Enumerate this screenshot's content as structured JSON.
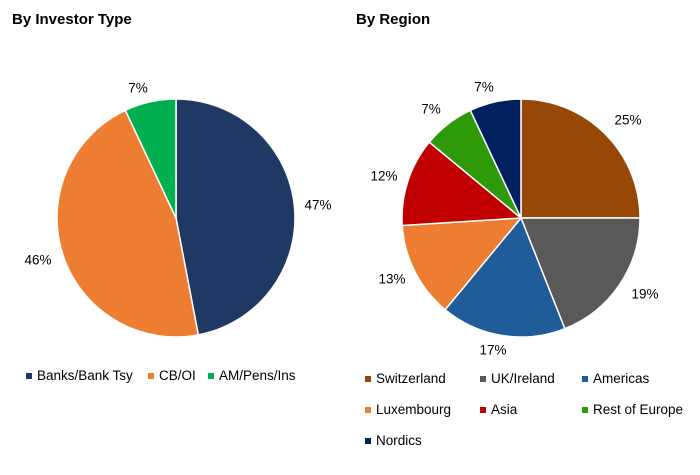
{
  "chart_data": [
    {
      "type": "pie",
      "title": "By Investor Type",
      "slices": [
        {
          "label": "Banks/Bank Tsy",
          "value": 47,
          "display": "47%",
          "color": "#1f3864"
        },
        {
          "label": "CB/OI",
          "value": 46,
          "display": "46%",
          "color": "#ed7d31"
        },
        {
          "label": "AM/Pens/Ins",
          "value": 7,
          "display": "7%",
          "color": "#00b050"
        }
      ]
    },
    {
      "type": "pie",
      "title": "By Region",
      "slices": [
        {
          "label": "Switzerland",
          "value": 25,
          "display": "25%",
          "color": "#974706"
        },
        {
          "label": "UK/Ireland",
          "value": 19,
          "display": "19%",
          "color": "#595959"
        },
        {
          "label": "Americas",
          "value": 17,
          "display": "17%",
          "color": "#1f5c99"
        },
        {
          "label": "Luxembourg",
          "value": 13,
          "display": "13%",
          "color": "#ed7d31"
        },
        {
          "label": "Asia",
          "value": 12,
          "display": "12%",
          "color": "#c00000"
        },
        {
          "label": "Rest of Europe",
          "value": 7,
          "display": "7%",
          "color": "#2e9a0a"
        },
        {
          "label": "Nordics",
          "value": 7,
          "display": "7%",
          "color": "#002060"
        }
      ]
    }
  ]
}
